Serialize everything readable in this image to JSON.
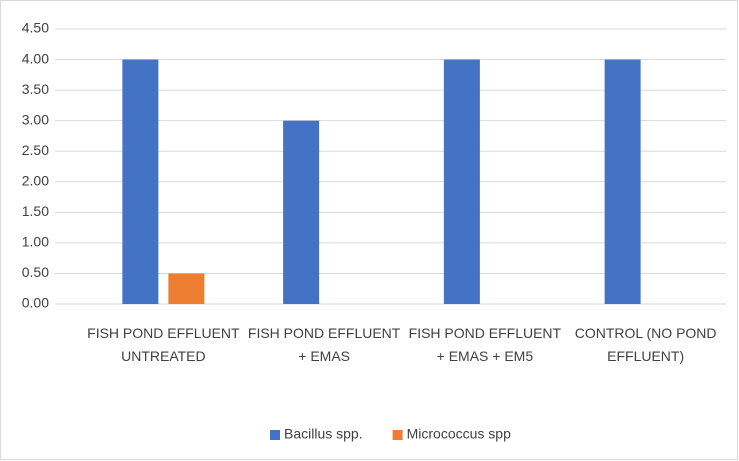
{
  "chart_data": {
    "type": "bar",
    "categories": [
      "FISH POND EFFLUENT UNTREATED",
      "FISH POND EFFLUENT + EMAS",
      "FISH POND EFFLUENT + EMAS + EM5",
      "CONTROL (NO POND EFFLUENT)"
    ],
    "series": [
      {
        "name": "Bacillus spp.",
        "color": "#4472c4",
        "values": [
          4,
          3,
          4,
          4
        ]
      },
      {
        "name": "Micrococcus spp",
        "color": "#ed7d31",
        "values": [
          0.5,
          0,
          0,
          0
        ]
      }
    ],
    "ylim": [
      0,
      4.5
    ],
    "yticks": [
      {
        "value": 0,
        "label": "0.00"
      },
      {
        "value": 0.5,
        "label": "0.50"
      },
      {
        "value": 1,
        "label": "1.00"
      },
      {
        "value": 1.5,
        "label": "1.50"
      },
      {
        "value": 2,
        "label": "2.00"
      },
      {
        "value": 2.5,
        "label": "2.50"
      },
      {
        "value": 3,
        "label": "3.00"
      },
      {
        "value": 3.5,
        "label": "3.50"
      },
      {
        "value": 4,
        "label": "4.00"
      },
      {
        "value": 4.5,
        "label": "4.50"
      }
    ],
    "grid": true,
    "legend": "bottom"
  }
}
